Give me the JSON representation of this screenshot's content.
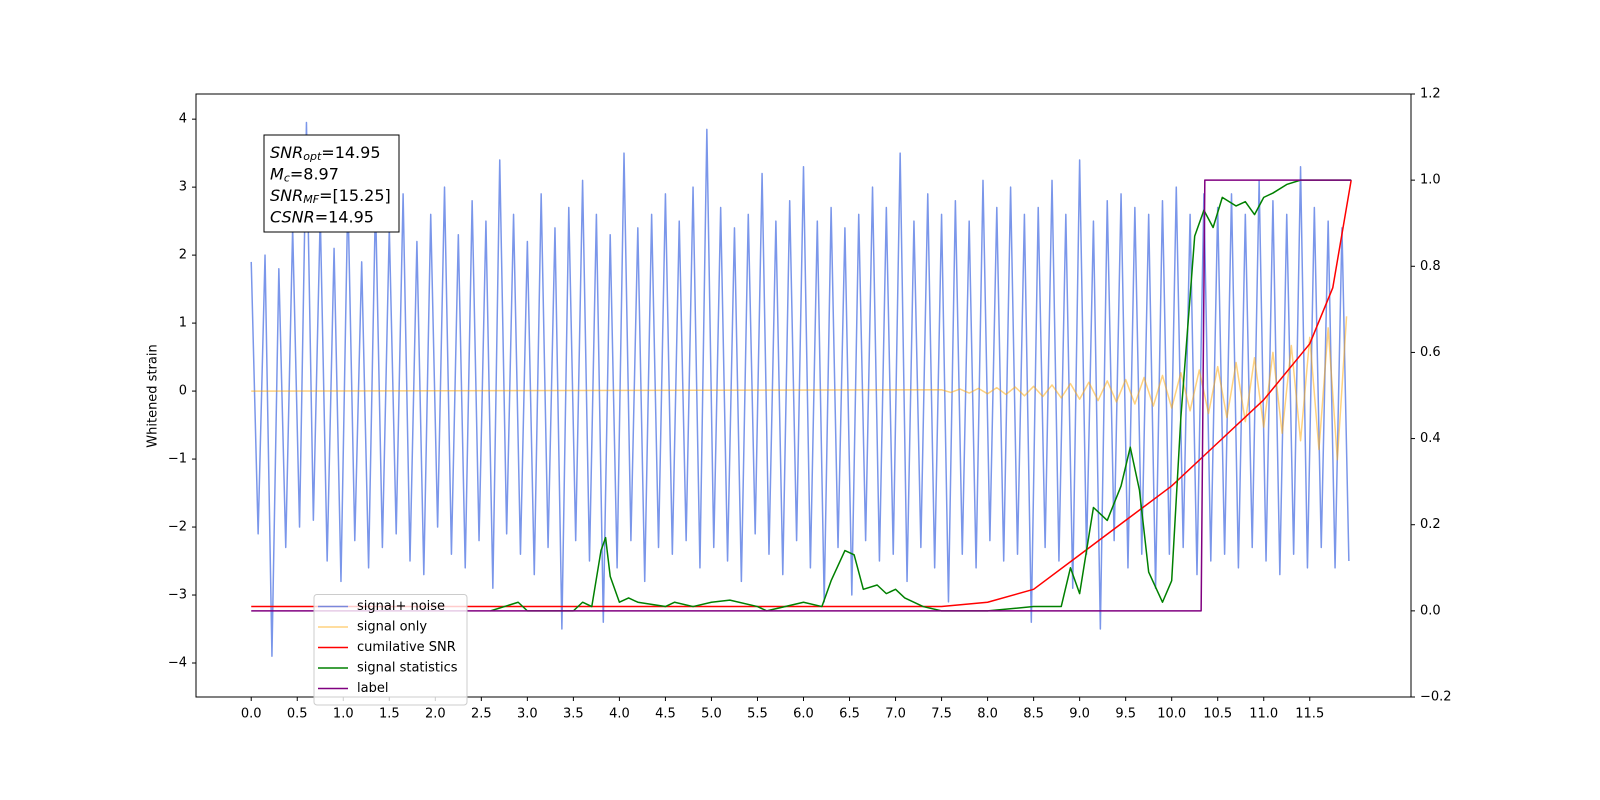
{
  "chart_data": {
    "type": "line",
    "ylabel": "Whitened strain",
    "annotation": {
      "lines": [
        {
          "base": "SNR",
          "sub": "opt",
          "rest": "=14.95"
        },
        {
          "base": "M",
          "sub": "c",
          "rest": "=8.97"
        },
        {
          "base": "SNR",
          "sub": "MF",
          "rest": "=[15.25]"
        },
        {
          "base": "CSNR",
          "rest": "=14.95"
        }
      ]
    },
    "legend": "lower left",
    "grid": false,
    "xlim": [
      -0.6,
      12.6
    ],
    "ylim": [
      -4.5,
      4.37
    ],
    "y2lim": [
      -0.2,
      1.2
    ],
    "xticks": [
      {
        "value": 0,
        "label": "0.0"
      },
      0.5,
      {
        "value": 1,
        "label": "1.0"
      },
      1.5,
      {
        "value": 2,
        "label": "2.0"
      },
      2.5,
      {
        "value": 3,
        "label": "3.0"
      },
      3.5,
      {
        "value": 4,
        "label": "4.0"
      },
      4.5,
      {
        "value": 5,
        "label": "5.0"
      },
      5.5,
      {
        "value": 6,
        "label": "6.0"
      },
      6.5,
      {
        "value": 7,
        "label": "7.0"
      },
      7.5,
      {
        "value": 8,
        "label": "8.0"
      },
      8.5,
      {
        "value": 9,
        "label": "9.0"
      },
      9.5,
      {
        "value": 10,
        "label": "10.0"
      },
      10.5,
      {
        "value": 11,
        "label": "11.0"
      },
      11.5
    ],
    "yticks": [
      {
        "value": -4,
        "label": "−4"
      },
      {
        "value": -3,
        "label": "−3"
      },
      {
        "value": -2,
        "label": "−2"
      },
      {
        "value": -1,
        "label": "−1"
      },
      0,
      1,
      2,
      3,
      4
    ],
    "y2ticks": [
      {
        "value": -0.2,
        "label": "−0.2"
      },
      {
        "value": 0,
        "label": "0.0"
      },
      0.2,
      0.4,
      0.6,
      0.8,
      {
        "value": 1,
        "label": "1.0"
      },
      1.2
    ],
    "series": [
      {
        "name": "signal+ noise",
        "color": "#4169e1",
        "alpha": 0.7,
        "x": [
          0,
          0.075,
          0.15,
          0.225,
          0.3,
          0.375,
          0.45,
          0.525,
          0.6,
          0.675,
          0.75,
          0.825,
          0.9,
          0.975,
          1.05,
          1.125,
          1.2,
          1.275,
          1.35,
          1.425,
          1.5,
          1.575,
          1.65,
          1.725,
          1.8,
          1.875,
          1.95,
          2.025,
          2.1,
          2.175,
          2.25,
          2.325,
          2.4,
          2.475,
          2.55,
          2.625,
          2.7,
          2.775,
          2.85,
          2.925,
          3,
          3.075,
          3.15,
          3.225,
          3.3,
          3.375,
          3.45,
          3.525,
          3.6,
          3.675,
          3.75,
          3.825,
          3.9,
          3.975,
          4.05,
          4.125,
          4.2,
          4.275,
          4.35,
          4.425,
          4.5,
          4.575,
          4.65,
          4.725,
          4.8,
          4.875,
          4.95,
          5.025,
          5.1,
          5.175,
          5.25,
          5.325,
          5.4,
          5.475,
          5.55,
          5.625,
          5.7,
          5.775,
          5.85,
          5.925,
          6,
          6.075,
          6.15,
          6.225,
          6.3,
          6.375,
          6.45,
          6.525,
          6.6,
          6.675,
          6.75,
          6.825,
          6.9,
          6.975,
          7.05,
          7.125,
          7.2,
          7.275,
          7.35,
          7.425,
          7.5,
          7.575,
          7.65,
          7.725,
          7.8,
          7.875,
          7.95,
          8.025,
          8.1,
          8.175,
          8.25,
          8.325,
          8.4,
          8.475,
          8.55,
          8.625,
          8.7,
          8.775,
          8.85,
          8.925,
          9,
          9.075,
          9.15,
          9.225,
          9.3,
          9.375,
          9.45,
          9.525,
          9.6,
          9.675,
          9.75,
          9.825,
          9.9,
          9.975,
          10.05,
          10.125,
          10.2,
          10.275,
          10.35,
          10.425,
          10.5,
          10.575,
          10.65,
          10.725,
          10.8,
          10.875,
          10.95,
          11.025,
          11.1,
          11.175,
          11.25,
          11.325,
          11.4,
          11.475,
          11.55,
          11.625,
          11.7,
          11.775,
          11.85,
          11.925
        ],
        "values": [
          1.9,
          -2.1,
          2.0,
          -3.9,
          1.8,
          -2.3,
          2.4,
          -2.0,
          3.95,
          -1.9,
          2.6,
          -2.5,
          2.1,
          -2.8,
          2.9,
          -2.2,
          1.9,
          -2.6,
          2.8,
          -2.3,
          2.4,
          -2.1,
          2.9,
          -2.5,
          2.2,
          -2.7,
          2.6,
          -2.0,
          3.0,
          -2.4,
          2.3,
          -2.6,
          2.8,
          -2.2,
          2.5,
          -2.9,
          3.4,
          -2.1,
          2.6,
          -2.4,
          2.2,
          -2.7,
          2.9,
          -2.3,
          2.4,
          -3.5,
          2.7,
          -2.2,
          3.1,
          -2.5,
          2.6,
          -3.4,
          2.3,
          -2.6,
          3.5,
          -2.2,
          2.4,
          -2.8,
          2.6,
          -2.3,
          2.9,
          -2.4,
          2.5,
          -2.2,
          3.0,
          -2.6,
          3.85,
          -2.3,
          2.7,
          -2.5,
          2.4,
          -2.8,
          2.6,
          -2.1,
          3.2,
          -2.4,
          2.5,
          -2.7,
          2.8,
          -2.2,
          3.3,
          -2.6,
          2.5,
          -3.1,
          2.7,
          -2.3,
          2.4,
          -3.0,
          2.6,
          -2.2,
          3.0,
          -2.5,
          2.7,
          -2.4,
          3.5,
          -2.8,
          2.5,
          -2.3,
          2.9,
          -2.6,
          2.6,
          -3.1,
          2.8,
          -2.4,
          2.5,
          -2.6,
          3.1,
          -2.2,
          2.7,
          -2.5,
          3.0,
          -2.4,
          2.6,
          -3.4,
          2.7,
          -2.3,
          3.1,
          -2.5,
          2.6,
          -2.9,
          3.4,
          -2.4,
          2.5,
          -3.5,
          2.8,
          -2.2,
          2.9,
          -2.6,
          2.7,
          -2.4,
          2.6,
          -2.9,
          2.8,
          -2.4,
          3.0,
          -2.3,
          2.6,
          -2.7,
          2.9,
          -2.5,
          2.7,
          -2.4,
          2.9,
          -2.6,
          2.6,
          -2.3,
          3.1,
          -2.5,
          2.8,
          -2.7,
          2.6,
          -2.4,
          3.3,
          -2.6,
          2.7,
          -2.3,
          2.5,
          -2.6,
          2.4,
          -2.5
        ]
      },
      {
        "name": "signal only",
        "color": "#ffa500",
        "alpha": 0.5,
        "x": [
          0,
          7.5,
          7.6,
          7.7,
          7.8,
          7.9,
          8.0,
          8.1,
          8.2,
          8.3,
          8.4,
          8.5,
          8.6,
          8.7,
          8.8,
          8.9,
          9.0,
          9.1,
          9.2,
          9.3,
          9.4,
          9.5,
          9.6,
          9.7,
          9.8,
          9.9,
          10.0,
          10.1,
          10.2,
          10.3,
          10.4,
          10.5,
          10.6,
          10.7,
          10.8,
          10.9,
          11.0,
          11.1,
          11.2,
          11.3,
          11.4,
          11.5,
          11.6,
          11.7,
          11.8,
          11.9
        ],
        "values": [
          0,
          0.02,
          -0.02,
          0.03,
          -0.03,
          0.04,
          -0.04,
          0.05,
          -0.05,
          0.06,
          -0.07,
          0.07,
          -0.08,
          0.09,
          -0.1,
          0.11,
          -0.12,
          0.13,
          -0.14,
          0.15,
          -0.16,
          0.17,
          -0.19,
          0.2,
          -0.22,
          0.23,
          -0.25,
          0.27,
          -0.29,
          0.31,
          -0.33,
          0.36,
          -0.39,
          0.42,
          -0.45,
          0.49,
          -0.53,
          0.57,
          -0.62,
          0.67,
          -0.73,
          0.79,
          -0.86,
          0.93,
          -1.01,
          1.1
        ]
      },
      {
        "name": "cumilative SNR",
        "color": "#ff0000",
        "alpha": 1,
        "axis": "y2",
        "x": [
          0,
          7.5,
          8.0,
          8.5,
          9.0,
          9.5,
          10.0,
          10.5,
          11.0,
          11.5,
          11.75,
          11.95
        ],
        "values": [
          0.01,
          0.01,
          0.02,
          0.05,
          0.13,
          0.21,
          0.29,
          0.39,
          0.49,
          0.62,
          0.75,
          1.0
        ]
      },
      {
        "name": "signal statistics",
        "color": "#008000",
        "alpha": 1,
        "axis": "y2",
        "x": [
          2.6,
          2.9,
          3.0,
          3.5,
          3.6,
          3.7,
          3.8,
          3.85,
          3.9,
          4.0,
          4.1,
          4.2,
          4.5,
          4.6,
          4.8,
          5.0,
          5.2,
          5.5,
          5.6,
          6.0,
          6.2,
          6.3,
          6.45,
          6.55,
          6.65,
          6.8,
          6.9,
          7.0,
          7.1,
          7.3,
          7.5,
          8.0,
          8.5,
          8.8,
          8.9,
          9.0,
          9.15,
          9.3,
          9.45,
          9.55,
          9.65,
          9.75,
          9.9,
          10.0,
          10.1,
          10.25,
          10.35,
          10.45,
          10.55,
          10.7,
          10.8,
          10.9,
          11.0,
          11.1,
          11.25,
          11.4,
          11.95
        ],
        "values": [
          0.0,
          0.02,
          0.0,
          0.0,
          0.02,
          0.01,
          0.14,
          0.17,
          0.08,
          0.02,
          0.03,
          0.02,
          0.01,
          0.02,
          0.01,
          0.02,
          0.025,
          0.01,
          0.0,
          0.02,
          0.01,
          0.07,
          0.14,
          0.13,
          0.05,
          0.06,
          0.04,
          0.05,
          0.03,
          0.01,
          0.0,
          0.0,
          0.01,
          0.01,
          0.1,
          0.04,
          0.24,
          0.21,
          0.29,
          0.38,
          0.28,
          0.09,
          0.02,
          0.07,
          0.45,
          0.87,
          0.93,
          0.89,
          0.96,
          0.94,
          0.95,
          0.92,
          0.96,
          0.97,
          0.99,
          1.0,
          1.0
        ]
      },
      {
        "name": "label",
        "color": "#800080",
        "alpha": 1,
        "axis": "y2",
        "x": [
          0,
          10.32,
          10.36,
          11.95
        ],
        "values": [
          0,
          0,
          1,
          1
        ]
      }
    ]
  }
}
